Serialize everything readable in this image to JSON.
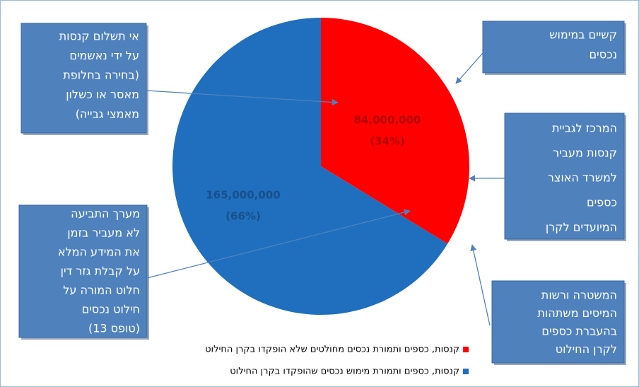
{
  "chart_data": {
    "type": "pie",
    "categories": [
      "קנסות, כספים ותמורת נכסים מחולטים שלא הופקדו בקרן החילוט",
      "קנסות, כספים ותמורת מימוש נכסים שהופקדו בקרן החילוט"
    ],
    "values": [
      84000000,
      165000000
    ],
    "value_labels": [
      "84,000,000",
      "165,000,000"
    ],
    "percent_labels": [
      "(34%)",
      "(66%)"
    ],
    "colors": [
      "#ff0000",
      "#1f6fbe"
    ],
    "annotations": [
      {
        "lines": [
          "אי תשלום קנסות",
          "על ידי נאשמים",
          "(בחירה בחלופת",
          "מאסר או כשלון",
          "מאמצי גבייה)"
        ]
      },
      {
        "lines": [
          "קשיים במימוש",
          "נכסים"
        ]
      },
      {
        "lines": [
          "המרכז לגביית",
          "קנסות מעביר",
          "למשרד האוצר",
          "כספים",
          "המיועדים לקרן"
        ]
      },
      {
        "lines": [
          "המשטרה ורשות",
          "המיסים משתהות",
          "בהעברת כספים",
          "לקרן החילוט"
        ]
      },
      {
        "lines": [
          "מערך התביעה",
          "לא מעביר בזמן",
          "את המידע המלא",
          "על קבלת גזר דין",
          "חלוט המורה על",
          "חילוט נכסים",
          "(טופס 13)"
        ]
      }
    ]
  }
}
